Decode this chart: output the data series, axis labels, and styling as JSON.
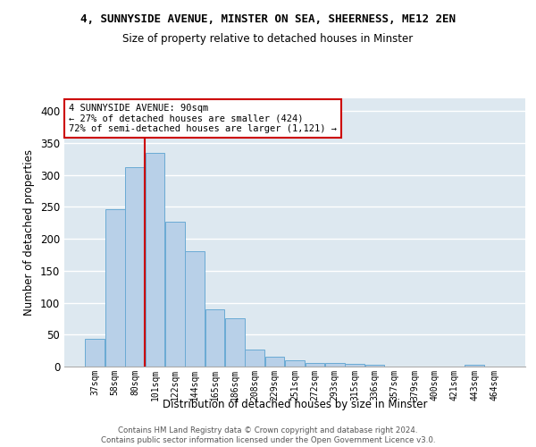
{
  "title_line1": "4, SUNNYSIDE AVENUE, MINSTER ON SEA, SHEERNESS, ME12 2EN",
  "title_line2": "Size of property relative to detached houses in Minster",
  "xlabel": "Distribution of detached houses by size in Minster",
  "ylabel": "Number of detached properties",
  "bins": [
    "37sqm",
    "58sqm",
    "80sqm",
    "101sqm",
    "122sqm",
    "144sqm",
    "165sqm",
    "186sqm",
    "208sqm",
    "229sqm",
    "251sqm",
    "272sqm",
    "293sqm",
    "315sqm",
    "336sqm",
    "357sqm",
    "379sqm",
    "400sqm",
    "421sqm",
    "443sqm",
    "464sqm"
  ],
  "values": [
    44,
    246,
    312,
    335,
    227,
    180,
    90,
    75,
    26,
    16,
    10,
    5,
    5,
    4,
    3,
    0,
    0,
    0,
    0,
    3,
    0
  ],
  "bar_color": "#b8d0e8",
  "bar_edge_color": "#6aaad4",
  "background_color": "#dde8f0",
  "grid_color": "#ffffff",
  "vline_color": "#cc0000",
  "vline_x": 2.5,
  "annotation_text": "4 SUNNYSIDE AVENUE: 90sqm\n← 27% of detached houses are smaller (424)\n72% of semi-detached houses are larger (1,121) →",
  "annotation_box_color": "#cc0000",
  "ylim": [
    0,
    420
  ],
  "yticks": [
    0,
    50,
    100,
    150,
    200,
    250,
    300,
    350,
    400
  ],
  "footer_line1": "Contains HM Land Registry data © Crown copyright and database right 2024.",
  "footer_line2": "Contains public sector information licensed under the Open Government Licence v3.0."
}
